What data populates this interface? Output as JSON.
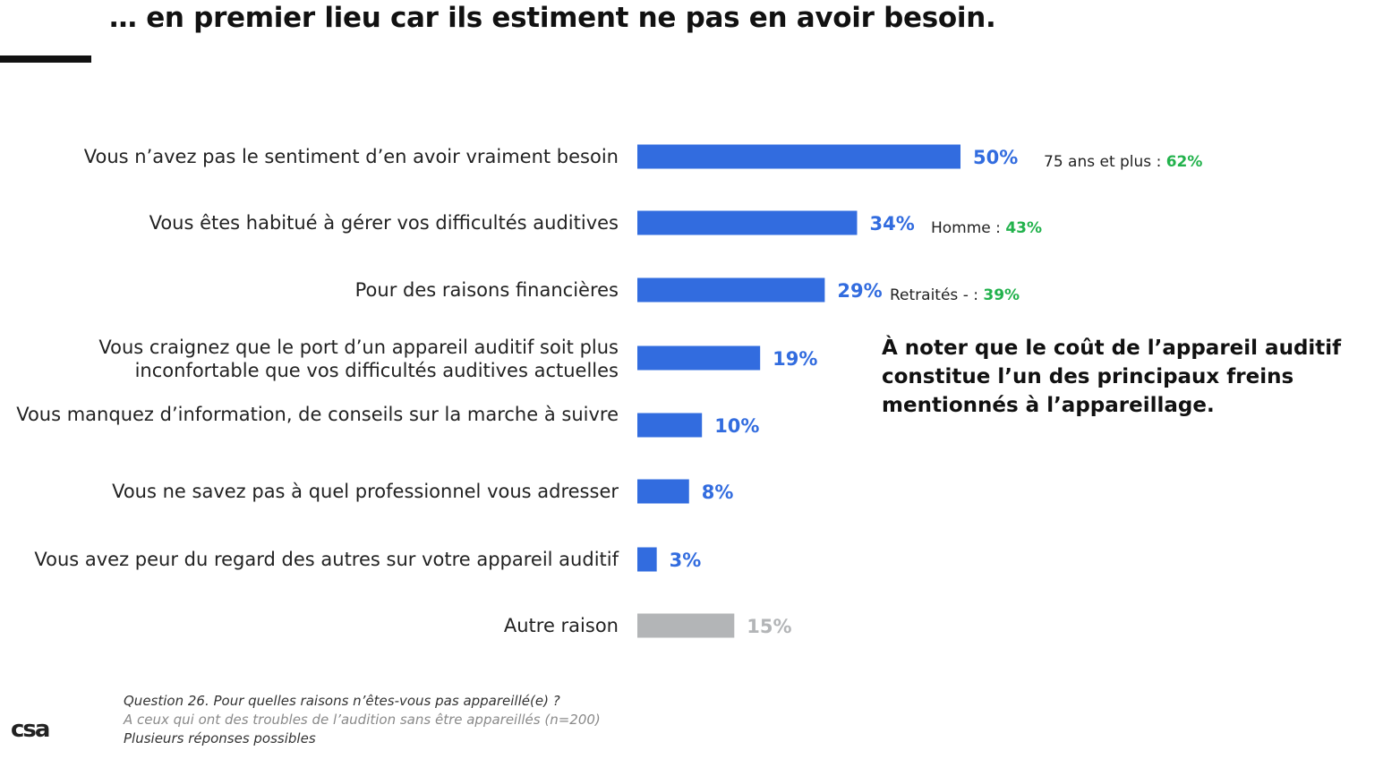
{
  "title": "… en premier lieu car ils estiment ne pas en avoir besoin.",
  "chart_data": {
    "type": "bar",
    "orientation": "horizontal",
    "categories": [
      "Vous n’avez pas le sentiment d’en avoir vraiment besoin",
      "Vous êtes habitué à gérer vos difficultés auditives",
      "Pour des raisons financières",
      "Vous craignez que le port d’un appareil auditif soit plus inconfortable que vos difficultés auditives actuelles",
      "Vous manquez d’information, de conseils sur la marche à suivre",
      "Vous ne savez pas à quel professionnel vous adresser",
      "Vous avez peur du regard des autres sur votre appareil auditif",
      "Autre raison"
    ],
    "values": [
      50,
      34,
      29,
      19,
      10,
      8,
      3,
      15
    ],
    "value_labels": [
      "50%",
      "34%",
      "29%",
      "19%",
      "10%",
      "8%",
      "3%",
      "15%"
    ],
    "unit": "%",
    "colors": [
      "#326cdf",
      "#326cdf",
      "#326cdf",
      "#326cdf",
      "#326cdf",
      "#326cdf",
      "#326cdf",
      "#b3b5b7"
    ],
    "annotations": [
      {
        "prefix": "75 ans et plus : ",
        "value": "62%"
      },
      {
        "prefix": "Homme : ",
        "value": "43%"
      },
      {
        "prefix": "Retraités - : ",
        "value": "39%"
      },
      null,
      null,
      null,
      null,
      null
    ],
    "annotation_color": "#22b24c",
    "xlim": [
      0,
      100
    ],
    "grid": false,
    "legend": "none"
  },
  "callout": "À noter que le coût de l’appareil auditif constitue l’un des principaux freins mentionnés à l’appareillage.",
  "footer": {
    "question": "Question 26. Pour quelles raisons n’êtes-vous pas appareillé(e) ?",
    "base": "A ceux qui ont des troubles de l’audition sans être appareillés (n=200)",
    "multi": "Plusieurs réponses possibles"
  },
  "logo": "csa"
}
